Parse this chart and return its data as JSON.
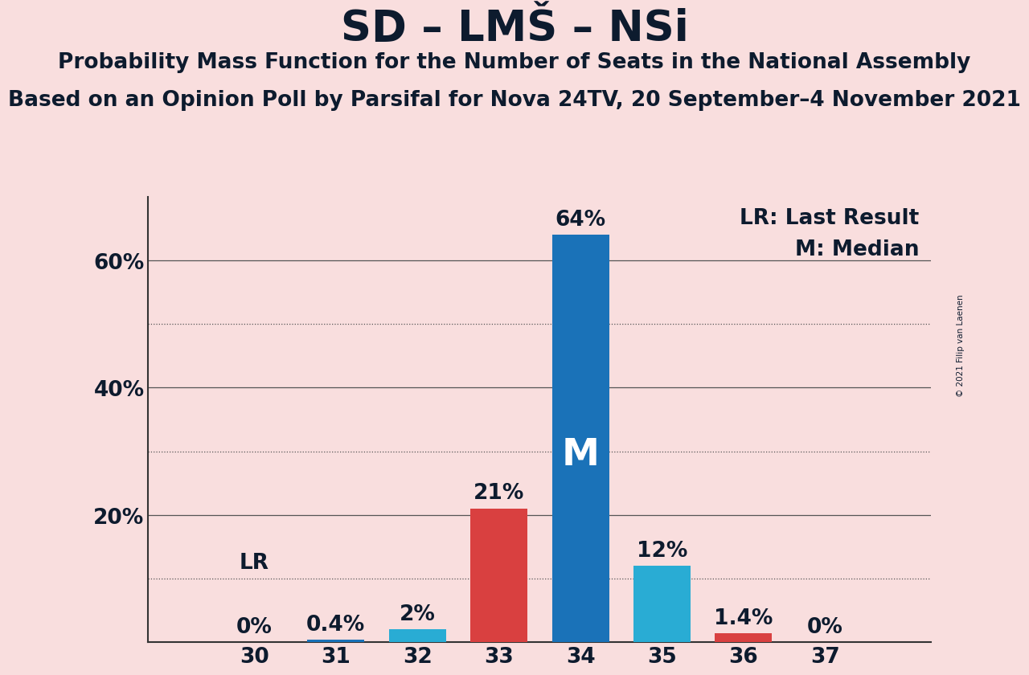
{
  "title": "SD – LMŠ – NSi",
  "subtitle1": "Probability Mass Function for the Number of Seats in the National Assembly",
  "subtitle2": "Based on an Opinion Poll by Parsifal for Nova 24TV, 20 September–4 November 2021",
  "copyright": "© 2021 Filip van Laenen",
  "seats": [
    30,
    31,
    32,
    33,
    34,
    35,
    36,
    37
  ],
  "values": [
    0.0,
    0.4,
    2.0,
    21.0,
    64.0,
    12.0,
    1.4,
    0.0
  ],
  "bar_colors": [
    "#1a72b8",
    "#1a72b8",
    "#29acd4",
    "#d94040",
    "#1a72b8",
    "#29acd4",
    "#d94040",
    "#1a72b8"
  ],
  "median_seat": 34,
  "last_result_seat": 30,
  "background_color": "#f9dede",
  "label_fontsize": 19,
  "title_fontsize": 38,
  "subtitle_fontsize": 19,
  "ymax": 70,
  "dotted_line_values": [
    10,
    30,
    50
  ],
  "solid_line_values": [
    20,
    40,
    60
  ],
  "bar_width": 0.7
}
